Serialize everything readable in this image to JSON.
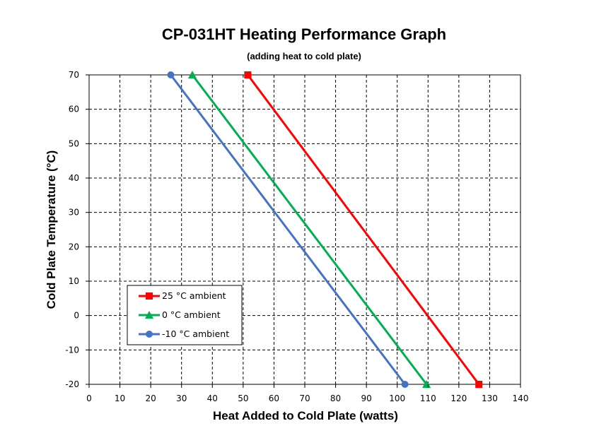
{
  "chart_data": {
    "type": "line",
    "title": "CP-031HT Heating Performance Graph",
    "subtitle": "(adding heat to cold plate)",
    "xlabel": "Heat Added to Cold Plate (watts)",
    "ylabel": "Cold Plate Temperature (°C)",
    "xlim": [
      0,
      140
    ],
    "ylim": [
      -20,
      70
    ],
    "xticks": [
      0,
      10,
      20,
      30,
      40,
      50,
      60,
      70,
      80,
      90,
      100,
      110,
      120,
      130,
      140
    ],
    "yticks": [
      -20,
      -10,
      0,
      10,
      20,
      30,
      40,
      50,
      60,
      70
    ],
    "grid": true,
    "legend_position": "bottom-left",
    "series": [
      {
        "name": "25 °C ambient",
        "color": "#ff0000",
        "marker": "square",
        "x": [
          51.5,
          126.5
        ],
        "y": [
          70,
          -20
        ]
      },
      {
        "name": "0 °C ambient",
        "color": "#00b050",
        "marker": "triangle",
        "x": [
          33.5,
          109.5
        ],
        "y": [
          70,
          -20
        ]
      },
      {
        "name": "-10 °C ambient",
        "color": "#4472c4",
        "marker": "circle",
        "x": [
          26.5,
          102.5
        ],
        "y": [
          70,
          -20
        ]
      }
    ]
  }
}
